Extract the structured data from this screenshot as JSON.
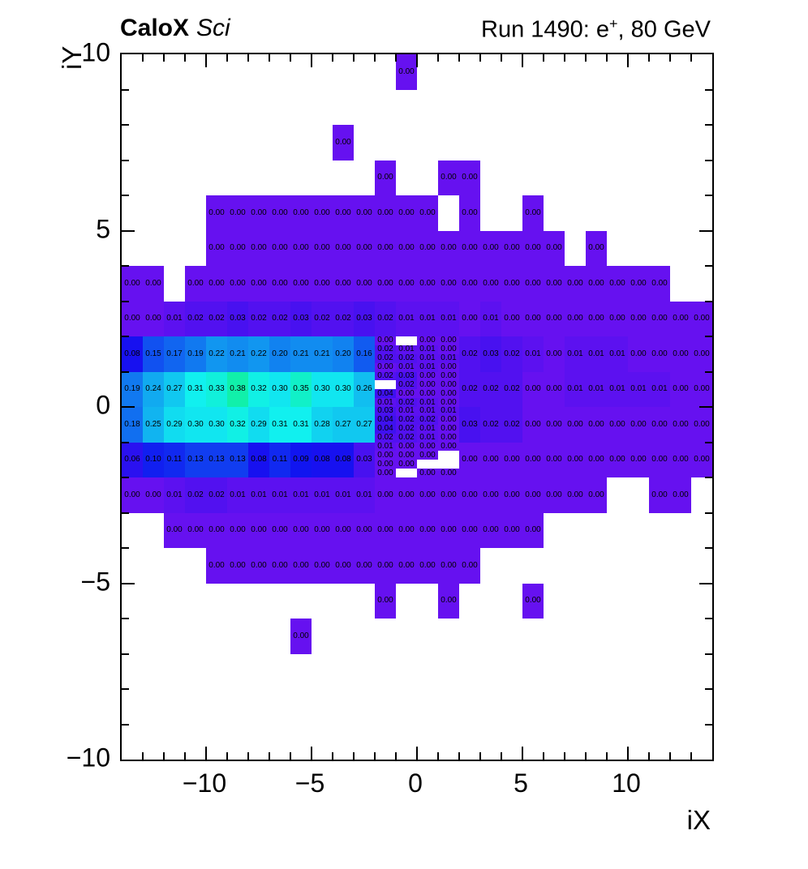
{
  "header": {
    "left_bold": "CaloX",
    "left_italic": "Sci",
    "right_prefix": "Run 1490: e",
    "right_sup": "+",
    "right_suffix": ", 80 GeV"
  },
  "axes": {
    "x_title": "iX",
    "y_title": "iY",
    "x_ticks": [
      {
        "v": -10,
        "t": "−10"
      },
      {
        "v": -5,
        "t": "−5"
      },
      {
        "v": 0,
        "t": "0"
      },
      {
        "v": 5,
        "t": "5"
      },
      {
        "v": 10,
        "t": "10"
      }
    ],
    "y_ticks": [
      {
        "v": 10,
        "t": "10"
      },
      {
        "v": 5,
        "t": "5"
      },
      {
        "v": 0,
        "t": "0"
      },
      {
        "v": -5,
        "t": "−5"
      },
      {
        "v": -10,
        "t": "−10"
      }
    ]
  },
  "chart_data": {
    "type": "heatmap",
    "title": "Run 1490: e+, 80 GeV",
    "subtitle": "CaloX Sci",
    "xlabel": "iX",
    "ylabel": "iY",
    "x_range": [
      -14,
      14
    ],
    "y_range": [
      -10,
      10
    ],
    "grid": false,
    "value_format": "two-decimals",
    "palette": {
      "model": "hsv",
      "hue_base": 263,
      "hue_slope": -268,
      "saturation": 0.93,
      "brightness": 0.94,
      "empty": "#ffffff",
      "color_scale_max": 1.0
    },
    "coarse_rows": [
      {
        "y": 9,
        "h": 1,
        "x0": -1,
        "dx": 1,
        "vals": [
          0
        ]
      },
      {
        "y": 7,
        "h": 1,
        "x0": -4,
        "dx": 1,
        "vals": [
          0
        ]
      },
      {
        "y": 6,
        "h": 1,
        "x0": -2,
        "dx": 1,
        "vals": [
          0,
          null,
          null,
          0,
          0
        ]
      },
      {
        "y": 5,
        "h": 1,
        "x0": -10,
        "dx": 1,
        "vals": [
          0,
          0,
          0,
          0,
          0,
          0,
          0,
          0,
          0,
          0,
          0,
          null,
          0,
          null,
          null,
          0
        ]
      },
      {
        "y": 4,
        "h": 1,
        "x0": -10,
        "dx": 1,
        "vals": [
          0,
          0,
          0,
          0,
          0,
          0,
          0,
          0,
          0,
          0,
          0,
          0,
          0,
          0,
          0,
          0,
          0,
          null,
          0
        ]
      },
      {
        "y": 3,
        "h": 1,
        "x0": -14,
        "dx": 1,
        "vals": [
          0,
          0,
          null,
          0,
          0,
          0,
          0,
          0,
          0,
          0,
          0,
          0,
          0,
          0,
          0,
          0,
          0,
          0,
          0,
          0,
          0,
          0,
          0,
          0,
          0,
          0,
          null,
          null
        ]
      },
      {
        "y": 2,
        "h": 1,
        "x0": -14,
        "dx": 1,
        "vals": [
          0,
          0,
          0.01,
          0.02,
          0.02,
          0.03,
          0.02,
          0.02,
          0.03,
          0.02,
          0.02,
          0.03,
          0.02,
          0.01,
          0.01,
          0.01,
          0,
          0.01,
          0,
          0,
          0,
          0,
          0,
          0,
          0,
          0,
          0,
          0
        ]
      },
      {
        "y": 1,
        "h": 1,
        "x0": -14,
        "dx": 1,
        "vals": [
          0.08,
          0.15,
          0.17,
          0.19,
          0.22,
          0.21,
          0.22,
          0.2,
          0.21,
          0.21,
          0.2,
          0.16
        ]
      },
      {
        "y": 1,
        "h": 1,
        "x0": 2,
        "dx": 1,
        "vals": [
          0.02,
          0.03,
          0.02,
          0.01,
          0,
          0.01,
          0.01,
          0.01,
          0,
          0,
          0,
          0
        ]
      },
      {
        "y": 0,
        "h": 1,
        "x0": -14,
        "dx": 1,
        "vals": [
          0.19,
          0.24,
          0.27,
          0.31,
          0.33,
          0.38,
          0.32,
          0.3,
          0.35,
          0.3,
          0.3,
          0.26
        ]
      },
      {
        "y": 0,
        "h": 1,
        "x0": 2,
        "dx": 1,
        "vals": [
          0.02,
          0.02,
          0.02,
          0,
          0,
          0.01,
          0.01,
          0.01,
          0.01,
          0.01,
          0,
          0
        ]
      },
      {
        "y": -1,
        "h": 1,
        "x0": -14,
        "dx": 1,
        "vals": [
          0.18,
          0.25,
          0.29,
          0.3,
          0.3,
          0.32,
          0.29,
          0.31,
          0.31,
          0.28,
          0.27,
          0.27
        ]
      },
      {
        "y": -1,
        "h": 1,
        "x0": 2,
        "dx": 1,
        "vals": [
          0.03,
          0.02,
          0.02,
          0,
          0,
          0,
          0,
          0,
          0,
          0,
          0,
          0
        ]
      },
      {
        "y": -2,
        "h": 1,
        "x0": -14,
        "dx": 1,
        "vals": [
          0.06,
          0.1,
          0.11,
          0.13,
          0.13,
          0.13,
          0.08,
          0.11,
          0.09,
          0.08,
          0.08,
          0.03
        ]
      },
      {
        "y": -2,
        "h": 1,
        "x0": 2,
        "dx": 1,
        "vals": [
          0,
          0,
          0,
          0,
          0,
          0,
          0,
          0,
          0,
          0,
          0,
          0
        ]
      },
      {
        "y": -3,
        "h": 1,
        "x0": -14,
        "dx": 1,
        "vals": [
          0,
          0,
          0.01,
          0.02,
          0.02,
          0.01,
          0.01,
          0.01,
          0.01,
          0.01,
          0.01,
          0.01,
          0,
          0,
          0,
          0,
          0,
          0,
          0,
          0,
          0,
          0,
          0,
          null,
          null,
          0,
          0,
          null
        ]
      },
      {
        "y": -4,
        "h": 1,
        "x0": -12,
        "dx": 1,
        "vals": [
          0,
          0,
          0,
          0,
          0,
          0,
          0,
          0,
          0,
          0,
          0,
          0,
          0,
          0,
          0,
          0,
          0,
          0
        ]
      },
      {
        "y": -5,
        "h": 1,
        "x0": -10,
        "dx": 1,
        "vals": [
          0,
          0,
          0,
          0,
          0,
          0,
          0,
          0,
          0,
          0,
          0,
          0,
          0
        ]
      },
      {
        "y": -6,
        "h": 1,
        "x0": -2,
        "dx": 1,
        "vals": [
          0,
          null,
          null,
          0,
          null,
          null,
          null,
          0
        ]
      },
      {
        "y": -7,
        "h": 1,
        "x0": -6,
        "dx": 1,
        "vals": [
          0
        ]
      }
    ],
    "fine_rows": [
      {
        "y": 1.75,
        "h": 0.25,
        "x0": -2,
        "dx": 1,
        "vals": [
          0,
          null,
          0,
          0
        ]
      },
      {
        "y": 1.5,
        "h": 0.25,
        "x0": -2,
        "dx": 1,
        "vals": [
          0.02,
          0.01,
          0.01,
          0
        ]
      },
      {
        "y": 1.25,
        "h": 0.25,
        "x0": -2,
        "dx": 1,
        "vals": [
          0.02,
          0.02,
          0.01,
          0.01
        ]
      },
      {
        "y": 1.0,
        "h": 0.25,
        "x0": -2,
        "dx": 1,
        "vals": [
          0,
          0.01,
          0.01,
          0
        ]
      },
      {
        "y": 0.75,
        "h": 0.25,
        "x0": -2,
        "dx": 1,
        "vals": [
          0.02,
          0.03,
          0,
          0
        ]
      },
      {
        "y": 0.5,
        "h": 0.25,
        "x0": -2,
        "dx": 1,
        "vals": [
          null,
          0.02,
          0,
          0
        ]
      },
      {
        "y": 0.25,
        "h": 0.25,
        "x0": -2,
        "dx": 1,
        "vals": [
          0.04,
          0,
          0,
          0
        ]
      },
      {
        "y": 0.0,
        "h": 0.25,
        "x0": -2,
        "dx": 1,
        "vals": [
          0.01,
          0.02,
          0.01,
          0
        ]
      },
      {
        "y": -0.25,
        "h": 0.25,
        "x0": -2,
        "dx": 1,
        "vals": [
          0.03,
          0.01,
          0.01,
          0.01
        ]
      },
      {
        "y": -0.5,
        "h": 0.25,
        "x0": -2,
        "dx": 1,
        "vals": [
          0.04,
          0.02,
          0.02,
          0
        ]
      },
      {
        "y": -0.75,
        "h": 0.25,
        "x0": -2,
        "dx": 1,
        "vals": [
          0.04,
          0.02,
          0.01,
          0
        ]
      },
      {
        "y": -1.0,
        "h": 0.25,
        "x0": -2,
        "dx": 1,
        "vals": [
          0.02,
          0.02,
          0.01,
          0
        ]
      },
      {
        "y": -1.25,
        "h": 0.25,
        "x0": -2,
        "dx": 1,
        "vals": [
          0.01,
          0,
          0,
          0
        ]
      },
      {
        "y": -1.5,
        "h": 0.25,
        "x0": -2,
        "dx": 1,
        "vals": [
          0,
          0,
          0,
          null
        ]
      },
      {
        "y": -1.75,
        "h": 0.25,
        "x0": -2,
        "dx": 1,
        "vals": [
          0,
          0,
          null,
          null
        ]
      },
      {
        "y": -2.0,
        "h": 0.25,
        "x0": -2,
        "dx": 1,
        "vals": [
          0,
          null,
          0,
          0
        ]
      }
    ]
  }
}
